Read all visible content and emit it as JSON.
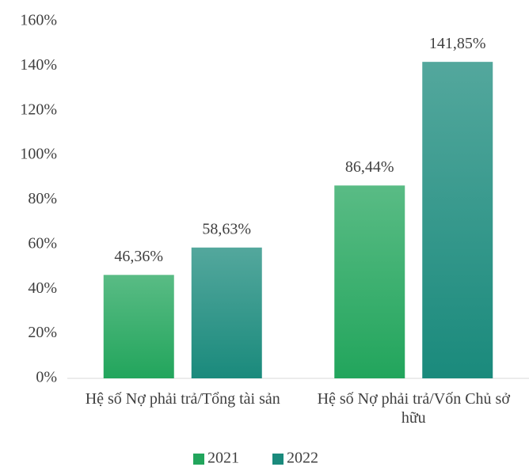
{
  "chart_data": {
    "type": "bar",
    "categories": [
      "Hệ số Nợ phải trả/Tổng tài sản",
      "Hệ số Nợ phải trả/Vốn Chủ sở hữu"
    ],
    "series": [
      {
        "name": "2021",
        "color": "#22a55c",
        "values": [
          46.36,
          86.44
        ],
        "value_labels": [
          "46,36%",
          "86,44%"
        ]
      },
      {
        "name": "2022",
        "color": "#1a8a7c",
        "values": [
          58.63,
          141.85
        ],
        "value_labels": [
          "58,63%",
          "141,85%"
        ]
      }
    ],
    "ylim": [
      0,
      160
    ],
    "yticks": [
      {
        "value": 0,
        "label": "0%"
      },
      {
        "value": 20,
        "label": "20%"
      },
      {
        "value": 40,
        "label": "40%"
      },
      {
        "value": 60,
        "label": "60%"
      },
      {
        "value": 80,
        "label": "80%"
      },
      {
        "value": 100,
        "label": "100%"
      },
      {
        "value": 120,
        "label": "120%"
      },
      {
        "value": 140,
        "label": "140%"
      },
      {
        "value": 160,
        "label": "160%"
      }
    ],
    "legend": "bottom"
  }
}
